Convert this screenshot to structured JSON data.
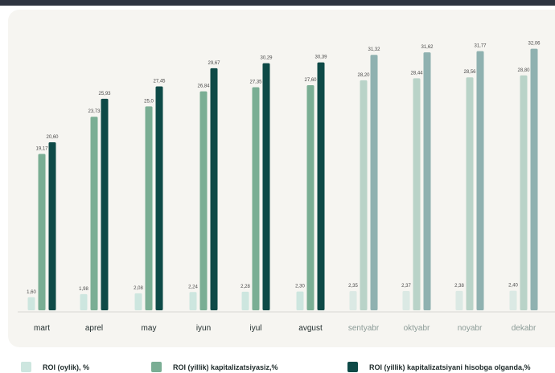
{
  "chart_data": {
    "type": "bar",
    "categories": [
      "mart",
      "aprel",
      "may",
      "iyun",
      "iyul",
      "avgust",
      "sentyabr",
      "oktyabr",
      "noyabr",
      "dekabr"
    ],
    "series": [
      {
        "name": "ROI (oylik), %",
        "values": [
          1.6,
          1.98,
          2.08,
          2.24,
          2.28,
          2.3,
          2.35,
          2.37,
          2.38,
          2.4
        ],
        "labels": [
          "1,60",
          "1,98",
          "2,08",
          "2,24",
          "2,28",
          "2,30",
          "2,35",
          "2,37",
          "2,38",
          "2,40"
        ]
      },
      {
        "name": "ROI (yillik) kapitalizatsiyasiz,%",
        "values": [
          19.17,
          23.73,
          25.0,
          26.84,
          27.35,
          27.6,
          28.2,
          28.44,
          28.56,
          28.8
        ],
        "labels": [
          "19,17",
          "23,73",
          "25,0",
          "26,84",
          "27,35",
          "27,60",
          "28,20",
          "28,44",
          "28,56",
          "28,80"
        ]
      },
      {
        "name": "ROI (yillik) kapitalizatsiyani hisobga olganda,%",
        "values": [
          20.6,
          25.93,
          27.45,
          29.67,
          30.29,
          30.39,
          31.32,
          31.62,
          31.77,
          32.06
        ],
        "labels": [
          "20,60",
          "25,93",
          "27,45",
          "29,67",
          "30,29",
          "30,39",
          "31,32",
          "31,62",
          "31,77",
          "32,06"
        ]
      }
    ],
    "colors": {
      "actual": [
        "#cde6df",
        "#7aae94",
        "#0e4a47"
      ],
      "forecast": [
        "#dbe9e4",
        "#b9d3c8",
        "#8fb1b0"
      ]
    },
    "forecast_start_index": 6,
    "ylim": [
      0,
      34
    ],
    "grid": false,
    "legend_position": "bottom"
  }
}
